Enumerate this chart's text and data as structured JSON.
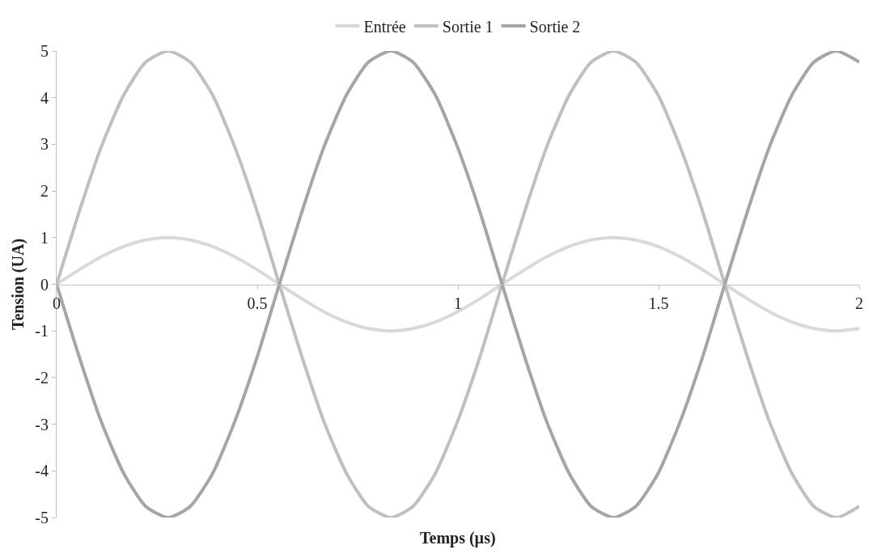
{
  "chart_data": {
    "type": "line",
    "xlabel": "Temps (µs)",
    "ylabel": "Tension (UA)",
    "x": [
      0,
      0.056,
      0.111,
      0.167,
      0.222,
      0.278,
      0.333,
      0.389,
      0.444,
      0.5,
      0.555,
      0.611,
      0.666,
      0.722,
      0.777,
      0.833,
      0.888,
      0.944,
      0.999,
      1.055,
      1.11,
      1.166,
      1.221,
      1.277,
      1.332,
      1.388,
      1.443,
      1.499,
      1.554,
      1.61,
      1.665,
      1.721,
      1.776,
      1.832,
      1.887,
      1.943,
      2
    ],
    "series": [
      {
        "name": "Entrée",
        "color": "#d9d9d9",
        "values": [
          0,
          0.31,
          0.59,
          0.81,
          0.95,
          1,
          0.95,
          0.81,
          0.59,
          0.31,
          0,
          -0.31,
          -0.59,
          -0.81,
          -0.95,
          -1,
          -0.95,
          -0.81,
          -0.59,
          -0.31,
          0,
          0.31,
          0.59,
          0.81,
          0.95,
          1,
          0.95,
          0.81,
          0.59,
          0.31,
          0,
          -0.31,
          -0.59,
          -0.81,
          -0.95,
          -1,
          -0.95
        ]
      },
      {
        "name": "Sortie 1",
        "color": "#bfbfbf",
        "values": [
          0,
          1.55,
          2.94,
          4.05,
          4.76,
          5,
          4.76,
          4.05,
          2.94,
          1.55,
          0,
          -1.55,
          -2.94,
          -4.05,
          -4.76,
          -5,
          -4.76,
          -4.05,
          -2.94,
          -1.55,
          0,
          1.55,
          2.94,
          4.05,
          4.76,
          5,
          4.76,
          4.05,
          2.94,
          1.55,
          0,
          -1.55,
          -2.94,
          -4.05,
          -4.76,
          -5,
          -4.76
        ]
      },
      {
        "name": "Sortie 2",
        "color": "#a5a5a5",
        "values": [
          0,
          -1.55,
          -2.94,
          -4.05,
          -4.76,
          -5,
          -4.76,
          -4.05,
          -2.94,
          -1.55,
          0,
          1.55,
          2.94,
          4.05,
          4.76,
          5,
          4.76,
          4.05,
          2.94,
          1.55,
          0,
          -1.55,
          -2.94,
          -4.05,
          -4.76,
          -5,
          -4.76,
          -4.05,
          -2.94,
          -1.55,
          0,
          1.55,
          2.94,
          4.05,
          4.76,
          5,
          4.76
        ]
      }
    ],
    "xlim": [
      0,
      2
    ],
    "xticks": [
      0,
      0.5,
      1,
      1.5,
      2
    ],
    "ylim": [
      -5,
      5
    ],
    "yticks": [
      -5,
      -4,
      -3,
      -2,
      -1,
      0,
      1,
      2,
      3,
      4,
      5
    ],
    "legend": "top",
    "marker": "none",
    "line_style": "solid"
  }
}
